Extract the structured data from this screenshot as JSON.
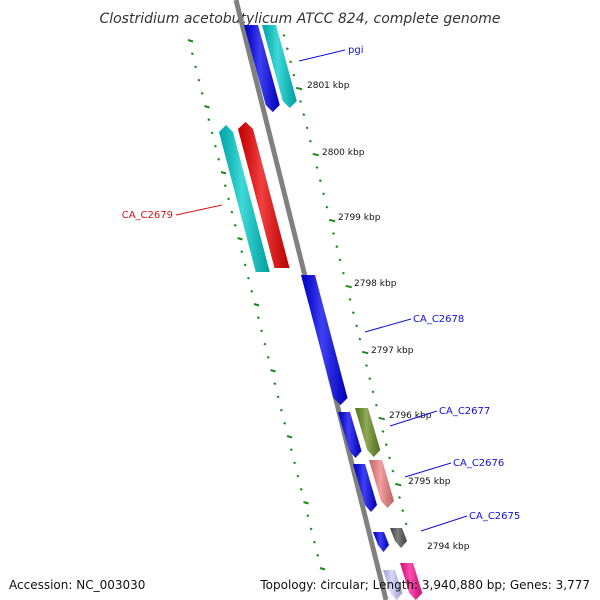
{
  "title": "Clostridium acetobutylicum ATCC 824, complete genome",
  "accession": "Accession: NC_003030",
  "topology": "Topology: circular; Length: 3,940,880 bp; Genes: 3,777",
  "colors": {
    "backbone": "#808080",
    "ticks": "#1a8a1a",
    "label_blue": "#1010dd",
    "label_red": "#dd1010"
  },
  "ruler": [
    {
      "label": "2801 kbp"
    },
    {
      "label": "2800 kbp"
    },
    {
      "label": "2799 kbp"
    },
    {
      "label": "2798 kbp"
    },
    {
      "label": "2797 kbp"
    },
    {
      "label": "2796 kbp"
    },
    {
      "label": "2795 kbp"
    },
    {
      "label": "2794 kbp"
    }
  ],
  "features": [
    {
      "name": "pgi",
      "color": "#0000ee",
      "strand": "reverse"
    },
    {
      "name": "",
      "color": "#00cccc",
      "strand": "reverse"
    },
    {
      "name": "",
      "color": "#00cccc",
      "strand": "forward"
    },
    {
      "name": "CA_C2679",
      "color": "#ee0000",
      "strand": "forward"
    },
    {
      "name": "CA_C2678",
      "color": "#0000ee",
      "strand": "reverse"
    },
    {
      "name": "",
      "color": "#0000ee",
      "strand": "reverse"
    },
    {
      "name": "CA_C2677",
      "color": "#6b8e23",
      "strand": "reverse"
    },
    {
      "name": "",
      "color": "#0000ee",
      "strand": "reverse"
    },
    {
      "name": "CA_C2676",
      "color": "#f08080",
      "strand": "reverse"
    },
    {
      "name": "",
      "color": "#0000ee",
      "strand": "reverse"
    },
    {
      "name": "CA_C2675",
      "color": "#555555",
      "strand": "reverse"
    },
    {
      "name": "",
      "color": "#ccccff",
      "strand": "reverse"
    },
    {
      "name": "",
      "color": "#ff1493",
      "strand": "reverse"
    }
  ]
}
